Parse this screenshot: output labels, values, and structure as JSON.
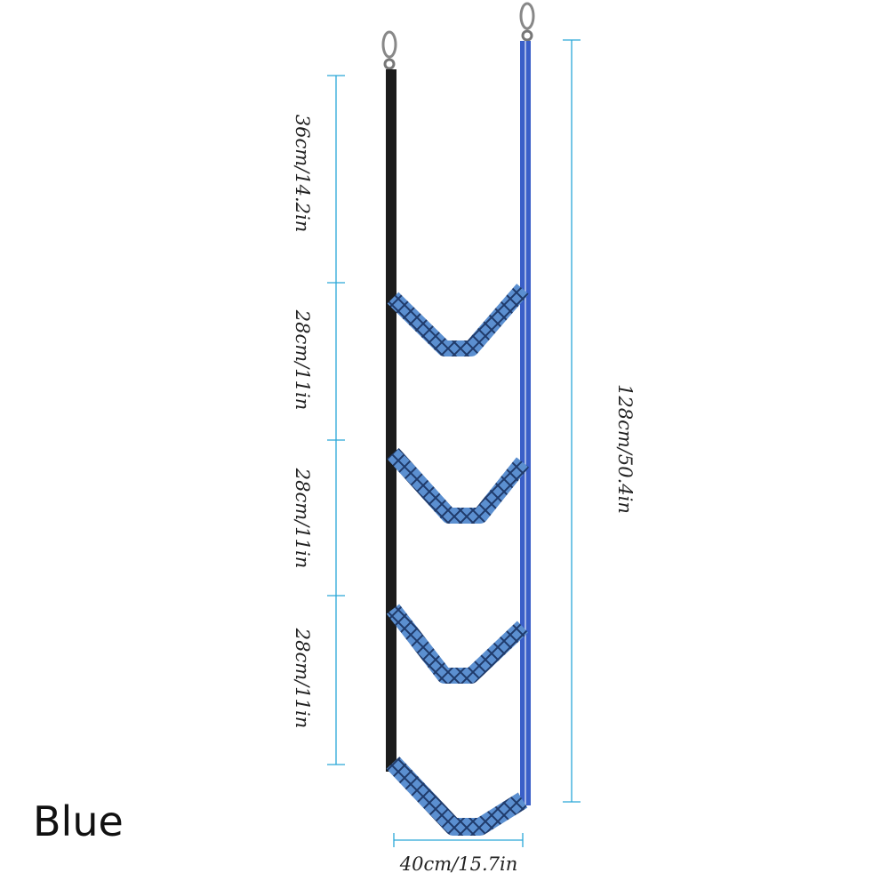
{
  "color_name": "Blue",
  "colors": {
    "dimension_line": "#2aa8d8",
    "strap_blue": "#3a5fc8",
    "strap_black": "#1c1c1c",
    "rung_blue": "#5b8fd0"
  },
  "dimensions": {
    "top_section": "36cm/14.2in",
    "step_spacing_1": "28cm/11in",
    "step_spacing_2": "28cm/11in",
    "step_spacing_3": "28cm/11in",
    "total_length": "128cm/50.4in",
    "width": "40cm/15.7in"
  }
}
